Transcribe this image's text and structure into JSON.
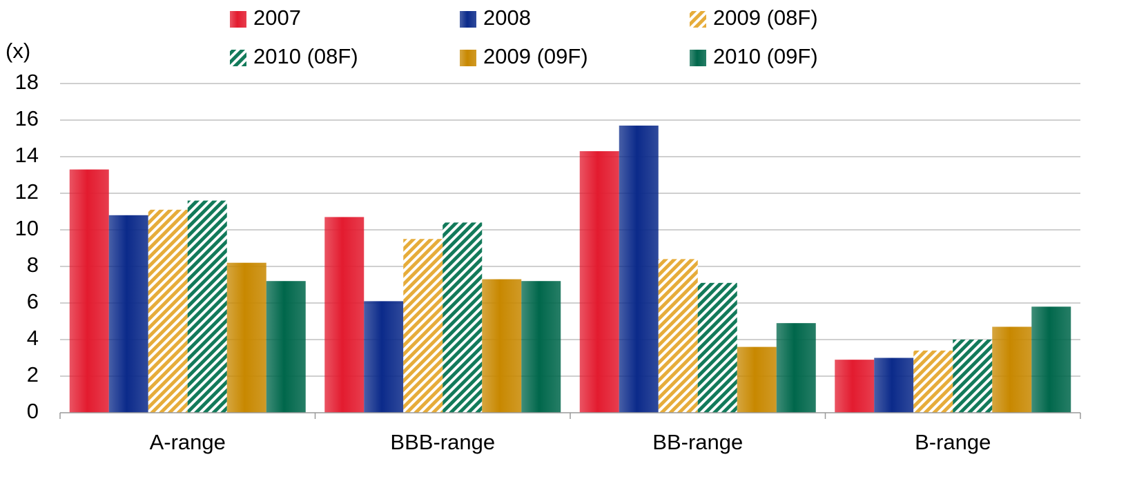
{
  "chart_data": {
    "type": "bar",
    "y_label": "(x)",
    "categories": [
      "A-range",
      "BBB-range",
      "BB-range",
      "B-range"
    ],
    "series": [
      {
        "name": "2007",
        "color": "#e31b2f",
        "pattern": "solid",
        "values": [
          13.3,
          10.7,
          14.3,
          2.9
        ]
      },
      {
        "name": "2008",
        "color": "#0b2a8a",
        "pattern": "solid",
        "values": [
          10.8,
          6.1,
          15.7,
          3.0
        ]
      },
      {
        "name": "2009 (08F)",
        "color": "#e6ac3a",
        "pattern": "hatch",
        "values": [
          11.1,
          9.5,
          8.4,
          3.4
        ]
      },
      {
        "name": "2010 (08F)",
        "color": "#127a5a",
        "pattern": "hatch",
        "values": [
          11.6,
          10.4,
          7.1,
          4.0
        ]
      },
      {
        "name": "2009 (09F)",
        "color": "#c88800",
        "pattern": "solid",
        "values": [
          8.2,
          7.3,
          3.6,
          4.7
        ]
      },
      {
        "name": "2010 (09F)",
        "color": "#00674b",
        "pattern": "solid",
        "values": [
          7.2,
          7.2,
          4.9,
          5.8
        ]
      }
    ],
    "ylim": [
      0,
      18
    ],
    "yticks": [
      0,
      2,
      4,
      6,
      8,
      10,
      12,
      14,
      16,
      18
    ],
    "grid": true,
    "legend": "top"
  }
}
